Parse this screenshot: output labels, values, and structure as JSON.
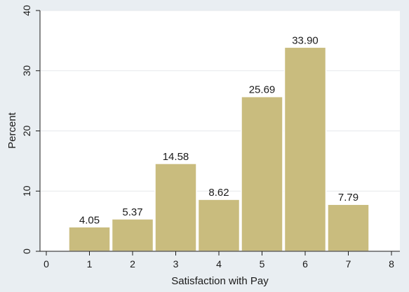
{
  "chart_data": {
    "type": "bar",
    "categories": [
      1,
      2,
      3,
      4,
      5,
      6,
      7
    ],
    "values": [
      4.05,
      5.37,
      14.58,
      8.62,
      25.69,
      33.9,
      7.79
    ],
    "data_labels": [
      "4.05",
      "5.37",
      "14.58",
      "8.62",
      "25.69",
      "33.90",
      "7.79"
    ],
    "xlabel": "Satisfaction with Pay",
    "ylabel": "Percent",
    "xlim": [
      0,
      8
    ],
    "ylim": [
      0,
      40
    ],
    "x_ticks": [
      "0",
      "1",
      "2",
      "3",
      "4",
      "5",
      "6",
      "7",
      "8"
    ],
    "y_ticks": [
      "0",
      "10",
      "20",
      "30",
      "40"
    ],
    "grid": "horizontal",
    "colors": {
      "background": "#e9eef2",
      "plot_area": "#ffffff",
      "bar_fill": "#c9bc7e",
      "bar_stroke": "#ffffff",
      "grid": "#e6e9ec",
      "axis": "#1a1a1a"
    }
  }
}
